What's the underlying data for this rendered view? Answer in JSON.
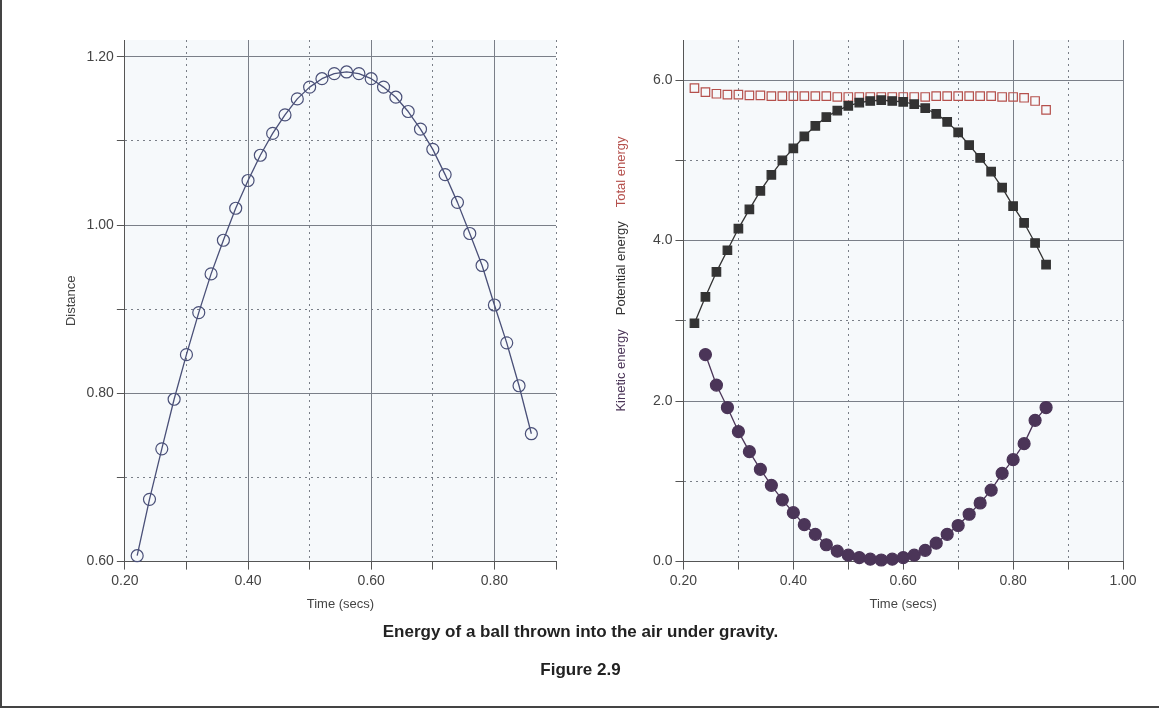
{
  "chart_data": [
    {
      "type": "line",
      "xlabel": "Time (secs)",
      "ylabel": "Distance",
      "marker": "circle",
      "grid": true,
      "xlim": [
        0.2,
        0.9
      ],
      "ylim": [
        0.6,
        1.22
      ],
      "xticks": [
        {
          "value": 0.2,
          "label": "0.20"
        },
        {
          "value": 0.3,
          "label": null
        },
        {
          "value": 0.4,
          "label": "0.40"
        },
        {
          "value": 0.5,
          "label": null
        },
        {
          "value": 0.6,
          "label": "0.60"
        },
        {
          "value": 0.7,
          "label": null
        },
        {
          "value": 0.8,
          "label": "0.80"
        },
        {
          "value": 0.9,
          "label": null
        }
      ],
      "yticks": [
        {
          "value": 0.6,
          "label": "0.60"
        },
        {
          "value": 0.7,
          "label": null
        },
        {
          "value": 0.8,
          "label": "0.80"
        },
        {
          "value": 0.9,
          "label": null
        },
        {
          "value": 1.0,
          "label": "1.00"
        },
        {
          "value": 1.1,
          "label": null
        },
        {
          "value": 1.2,
          "label": "1.20"
        }
      ],
      "x": [
        0.22,
        0.24,
        0.26,
        0.28,
        0.3,
        0.32,
        0.34,
        0.36,
        0.38,
        0.4,
        0.42,
        0.44,
        0.46,
        0.48,
        0.5,
        0.52,
        0.54,
        0.56,
        0.58,
        0.6,
        0.62,
        0.64,
        0.66,
        0.68,
        0.7,
        0.72,
        0.74,
        0.76,
        0.78,
        0.8,
        0.82,
        0.84,
        0.86
      ],
      "series": [
        {
          "color": "#4a5078",
          "values": [
            0.607,
            0.674,
            0.734,
            0.793,
            0.846,
            0.896,
            0.942,
            0.982,
            1.02,
            1.053,
            1.083,
            1.109,
            1.131,
            1.15,
            1.164,
            1.174,
            1.18,
            1.182,
            1.18,
            1.174,
            1.164,
            1.152,
            1.135,
            1.114,
            1.09,
            1.06,
            1.027,
            0.99,
            0.952,
            0.905,
            0.86,
            0.809,
            0.752
          ]
        }
      ],
      "annotations": [
        "Energy of a ball thrown into the air under gravity.",
        "Figure 2.9"
      ]
    },
    {
      "type": "line",
      "xlabel": "Time (secs)",
      "grid": true,
      "legend": "left",
      "xlim": [
        0.2,
        1.0
      ],
      "ylim": [
        0,
        6.5
      ],
      "xticks": [
        {
          "value": 0.2,
          "label": "0.20"
        },
        {
          "value": 0.3,
          "label": null
        },
        {
          "value": 0.4,
          "label": "0.40"
        },
        {
          "value": 0.5,
          "label": null
        },
        {
          "value": 0.6,
          "label": "0.60"
        },
        {
          "value": 0.7,
          "label": null
        },
        {
          "value": 0.8,
          "label": "0.80"
        },
        {
          "value": 0.9,
          "label": null
        },
        {
          "value": 1.0,
          "label": "1.00"
        }
      ],
      "yticks": [
        {
          "value": 0,
          "label": "0.0"
        },
        {
          "value": 1,
          "label": null
        },
        {
          "value": 2,
          "label": "2.0"
        },
        {
          "value": 3,
          "label": null
        },
        {
          "value": 4,
          "label": "4.0"
        },
        {
          "value": 5,
          "label": null
        },
        {
          "value": 6,
          "label": "6.0"
        }
      ],
      "x": [
        0.22,
        0.24,
        0.26,
        0.28,
        0.3,
        0.32,
        0.34,
        0.36,
        0.38,
        0.4,
        0.42,
        0.44,
        0.46,
        0.48,
        0.5,
        0.52,
        0.54,
        0.56,
        0.58,
        0.6,
        0.62,
        0.64,
        0.66,
        0.68,
        0.7,
        0.72,
        0.74,
        0.76,
        0.78,
        0.8,
        0.82,
        0.84,
        0.86
      ],
      "series": [
        {
          "name": "Kinetic energy",
          "color": "#4b3558",
          "marker": "circle",
          "values": [
            null,
            2.58,
            2.2,
            1.92,
            1.62,
            1.37,
            1.15,
            0.95,
            0.77,
            0.61,
            0.46,
            0.34,
            0.21,
            0.13,
            0.08,
            0.05,
            0.03,
            0.02,
            0.03,
            0.05,
            0.08,
            0.14,
            0.23,
            0.34,
            0.45,
            0.59,
            0.73,
            0.89,
            1.1,
            1.27,
            1.47,
            1.76,
            1.92
          ]
        },
        {
          "name": "Potential energy",
          "color": "#333333",
          "marker": "square",
          "values": [
            2.97,
            3.3,
            3.61,
            3.88,
            4.15,
            4.39,
            4.62,
            4.82,
            5.0,
            5.15,
            5.3,
            5.43,
            5.54,
            5.62,
            5.68,
            5.72,
            5.74,
            5.75,
            5.74,
            5.73,
            5.7,
            5.65,
            5.58,
            5.48,
            5.35,
            5.19,
            5.03,
            4.86,
            4.66,
            4.43,
            4.22,
            3.97,
            3.7
          ]
        },
        {
          "name": "Total energy",
          "type": "scatter",
          "color": "#b5504c",
          "marker": "square",
          "values": [
            5.9,
            5.85,
            5.83,
            5.82,
            5.82,
            5.81,
            5.81,
            5.8,
            5.8,
            5.8,
            5.8,
            5.8,
            5.8,
            5.79,
            5.79,
            5.79,
            5.79,
            5.79,
            5.79,
            5.79,
            5.79,
            5.79,
            5.8,
            5.8,
            5.8,
            5.8,
            5.8,
            5.8,
            5.79,
            5.79,
            5.78,
            5.74,
            5.63
          ]
        }
      ]
    }
  ]
}
